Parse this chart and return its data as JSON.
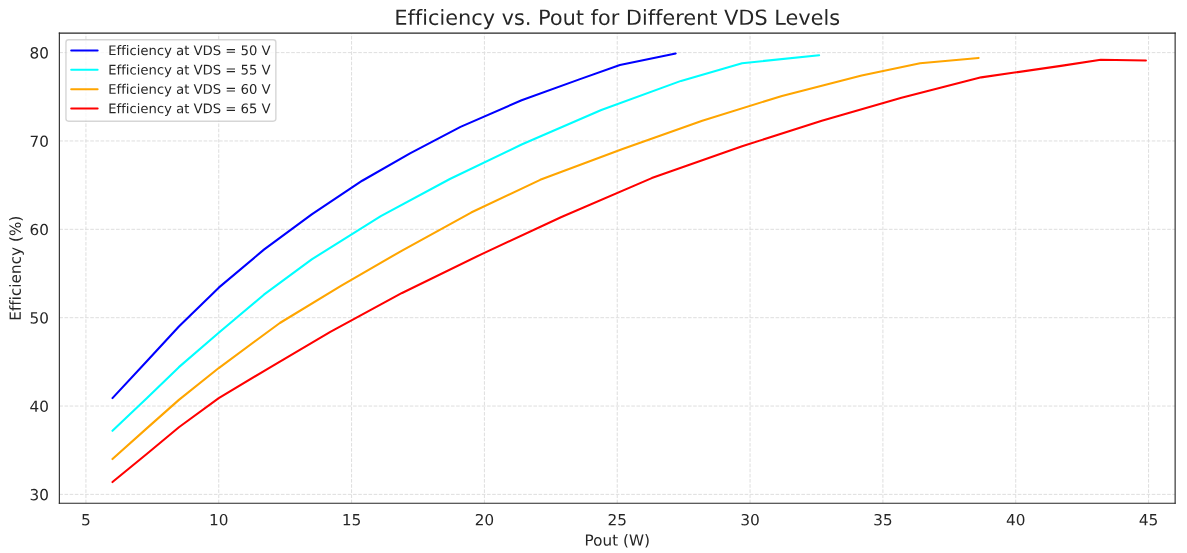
{
  "chart_data": {
    "type": "line",
    "title": "Efficiency vs. Pout for Different VDS Levels",
    "xlabel": "Pout (W)",
    "ylabel": "Efficiency (%)",
    "xlim": [
      4,
      46
    ],
    "ylim": [
      29,
      82.2
    ],
    "xticks": [
      5,
      10,
      15,
      20,
      25,
      30,
      35,
      40,
      45
    ],
    "yticks": [
      30,
      40,
      50,
      60,
      70,
      80
    ],
    "grid": true,
    "legend": "top left",
    "line_style": "solid",
    "series": [
      {
        "name": "Efficiency at VDS = 50 V",
        "color": "#0000ff",
        "x": [
          6,
          7.3,
          8.5,
          10,
          11.7,
          13.5,
          15.4,
          17.2,
          19.1,
          21.4,
          23.6,
          25.1,
          27.2
        ],
        "values": [
          40.9,
          45.1,
          49,
          53.4,
          57.7,
          61.7,
          65.5,
          68.6,
          71.6,
          74.6,
          77,
          78.6,
          79.9
        ]
      },
      {
        "name": "Efficiency at VDS = 55 V",
        "color": "#00ffff",
        "x": [
          6,
          7.3,
          8.5,
          10,
          11.7,
          13.5,
          16.1,
          18.7,
          21.4,
          24.4,
          27.4,
          29.7,
          32.6
        ],
        "values": [
          37.2,
          40.9,
          44.4,
          48.3,
          52.6,
          56.6,
          61.5,
          65.7,
          69.6,
          73.5,
          76.8,
          78.8,
          79.7
        ]
      },
      {
        "name": "Efficiency at VDS = 60 V",
        "color": "#ffa500",
        "x": [
          6,
          7.3,
          8.5,
          10,
          12.3,
          14.6,
          16.9,
          19.5,
          22.1,
          25.2,
          28.2,
          31.2,
          34.2,
          36.4,
          38.6
        ],
        "values": [
          34,
          37.5,
          40.7,
          44.3,
          49.4,
          53.6,
          57.6,
          61.9,
          65.6,
          69.1,
          72.3,
          75.1,
          77.4,
          78.8,
          79.4
        ]
      },
      {
        "name": "Efficiency at VDS = 65 V",
        "color": "#ff0000",
        "x": [
          6,
          7.3,
          8.5,
          10,
          12,
          14.2,
          16.9,
          19.9,
          22.9,
          26.3,
          29.7,
          32.7,
          35.7,
          38.7,
          41.7,
          43.2,
          44.9
        ],
        "values": [
          31.4,
          34.6,
          37.6,
          40.9,
          44.5,
          48.4,
          52.8,
          57.2,
          61.4,
          65.8,
          69.4,
          72.3,
          74.9,
          77.2,
          78.5,
          79.2,
          79.1
        ]
      }
    ]
  }
}
